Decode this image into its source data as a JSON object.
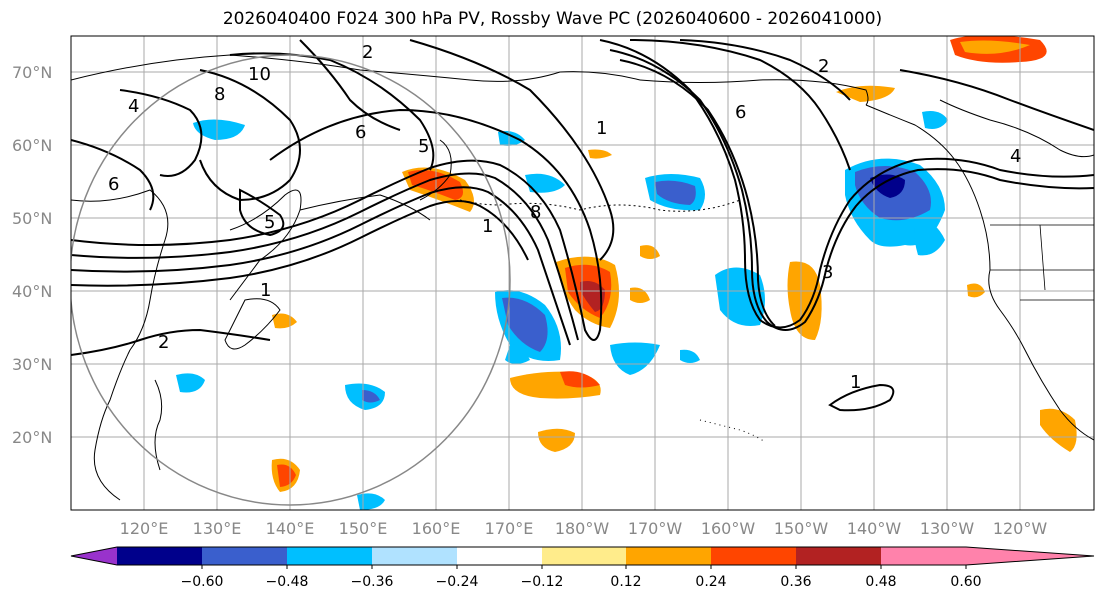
{
  "title": "2026040400 F024 300 hPa PV, Rossby Wave PC (2026040600 - 2026041000)",
  "lat_labels": [
    "70°N",
    "60°N",
    "50°N",
    "40°N",
    "30°N",
    "20°N"
  ],
  "lon_labels": [
    "120°E",
    "130°E",
    "140°E",
    "150°E",
    "160°E",
    "170°E",
    "180°W",
    "170°W",
    "160°W",
    "150°W",
    "140°W",
    "130°W",
    "120°W"
  ],
  "colorbar": {
    "ticks": [
      "−0.60",
      "−0.48",
      "−0.36",
      "−0.24",
      "−0.12",
      "0.12",
      "0.24",
      "0.36",
      "0.48",
      "0.60"
    ],
    "colors": [
      "#9932cc",
      "#00008b",
      "#3a5fcd",
      "#00bfff",
      "#b0e2ff",
      "#ffffff",
      "#ffec8b",
      "#ffa500",
      "#ff4500",
      "#b22222",
      "#ff82ab"
    ]
  },
  "contour_labels": [
    "10",
    "8",
    "6",
    "5",
    "4",
    "2",
    "1",
    "1",
    "2",
    "6",
    "8",
    "5",
    "1",
    "2",
    "4",
    "6",
    "3",
    "1"
  ]
}
